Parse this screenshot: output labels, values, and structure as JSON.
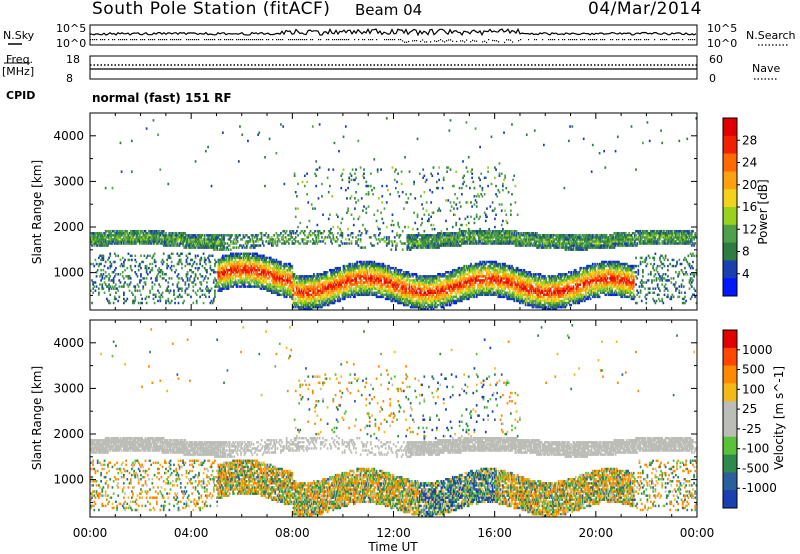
{
  "header": {
    "station": "South Pole Station (fitACF)",
    "beam": "Beam 04",
    "date": "04/Mar/2014"
  },
  "status_panels": {
    "nsky_label": "N.Sky",
    "nsky_ticks": [
      "10^5",
      "10^0"
    ],
    "nsearch_label": "N.Search",
    "nsearch_ticks": [
      "10^5",
      "10^0"
    ],
    "freq_label_1": "Freq.",
    "freq_label_2": "[MHz]",
    "freq_ticks": [
      "18",
      "8"
    ],
    "nave_label": "Nave",
    "nave_ticks": [
      "60",
      "0"
    ],
    "cpid_label": "CPID",
    "cpid_value": "normal (fast) 151 RF"
  },
  "colors": {
    "power_scale": [
      "#0018ff",
      "#1a3fb0",
      "#2e7d40",
      "#4fa04a",
      "#9ad11e",
      "#f2d21a",
      "#ffa011",
      "#ff6a00",
      "#f02000",
      "#e00000"
    ],
    "velocity_scale": [
      "#1a3fb0",
      "#2a5f9e",
      "#2e8a4a",
      "#59c23a",
      "#bdbdb8",
      "#bdbdb8",
      "#f5b81a",
      "#ff8a00",
      "#ff4500",
      "#e00000"
    ]
  },
  "chart_data": [
    {
      "type": "heatmap",
      "title": "",
      "xlabel": "Time UT",
      "ylabel": "Slant Range [km]",
      "colorbar_label": "Power [dB]",
      "colorbar_ticks": [
        "28",
        "24",
        "20",
        "16",
        "12",
        "8",
        "4"
      ],
      "xlim": [
        0,
        24
      ],
      "ylim": [
        180,
        4500
      ],
      "x_ticks": [
        "00:00",
        "04:00",
        "08:00",
        "12:00",
        "16:00",
        "20:00",
        "00:00"
      ],
      "y_ticks": [
        "1000",
        "2000",
        "3000",
        "4000"
      ],
      "cmap_range": [
        0,
        30
      ]
    },
    {
      "type": "heatmap",
      "title": "",
      "xlabel": "Time UT",
      "ylabel": "Slant Range [km]",
      "colorbar_label": "Velocity [m s^-1]",
      "colorbar_ticks": [
        "1000",
        "500",
        "100",
        "25",
        "-25",
        "-100",
        "-500",
        "-1000"
      ],
      "xlim": [
        0,
        24
      ],
      "ylim": [
        180,
        4500
      ],
      "x_ticks": [
        "00:00",
        "04:00",
        "08:00",
        "12:00",
        "16:00",
        "20:00",
        "00:00"
      ],
      "y_ticks": [
        "1000",
        "2000",
        "3000",
        "4000"
      ],
      "cmap_range": [
        -1000,
        1000
      ]
    }
  ]
}
